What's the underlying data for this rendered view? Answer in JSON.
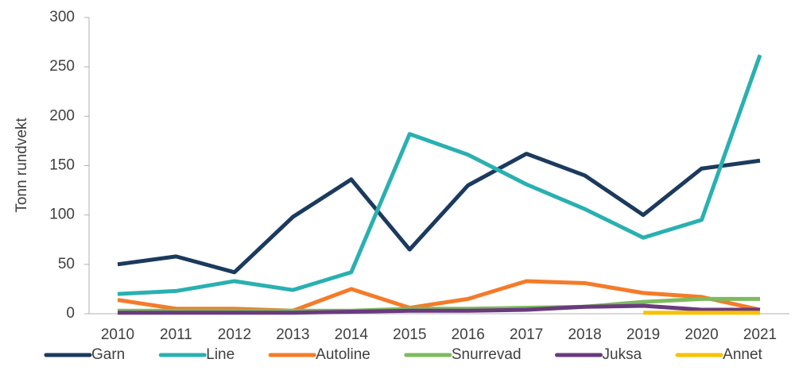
{
  "chart_data": {
    "type": "line",
    "y_label": "Tonn rundvekt",
    "categories": [
      "2010",
      "2011",
      "2012",
      "2013",
      "2014",
      "2015",
      "2016",
      "2017",
      "2018",
      "2019",
      "2020",
      "2021"
    ],
    "series": [
      {
        "name": "Garn",
        "color": "#1b3a5e",
        "values": [
          50,
          58,
          42,
          98,
          136,
          65,
          130,
          162,
          140,
          100,
          147,
          155
        ]
      },
      {
        "name": "Line",
        "color": "#2ab0b0",
        "values": [
          20,
          23,
          33,
          24,
          42,
          182,
          161,
          131,
          106,
          77,
          95,
          262
        ]
      },
      {
        "name": "Autoline",
        "color": "#f47b2a",
        "values": [
          14,
          5,
          5,
          3,
          25,
          6,
          15,
          33,
          31,
          21,
          17,
          4
        ]
      },
      {
        "name": "Snurrevad",
        "color": "#7dbb5e",
        "values": [
          3,
          3,
          3,
          3,
          3,
          5,
          5,
          6,
          7,
          12,
          15,
          15
        ]
      },
      {
        "name": "Juksa",
        "color": "#6a3a7e",
        "values": [
          1,
          1,
          1,
          1,
          2,
          3,
          3,
          4,
          7,
          8,
          4,
          4
        ]
      },
      {
        "name": "Annet",
        "color": "#f7c200",
        "values": [
          null,
          null,
          null,
          null,
          null,
          null,
          null,
          null,
          null,
          1,
          1,
          1
        ]
      }
    ],
    "ylim": [
      0,
      300
    ],
    "yticks": [
      0,
      50,
      100,
      150,
      200,
      250,
      300
    ],
    "grid": false,
    "legend": "bottom"
  }
}
